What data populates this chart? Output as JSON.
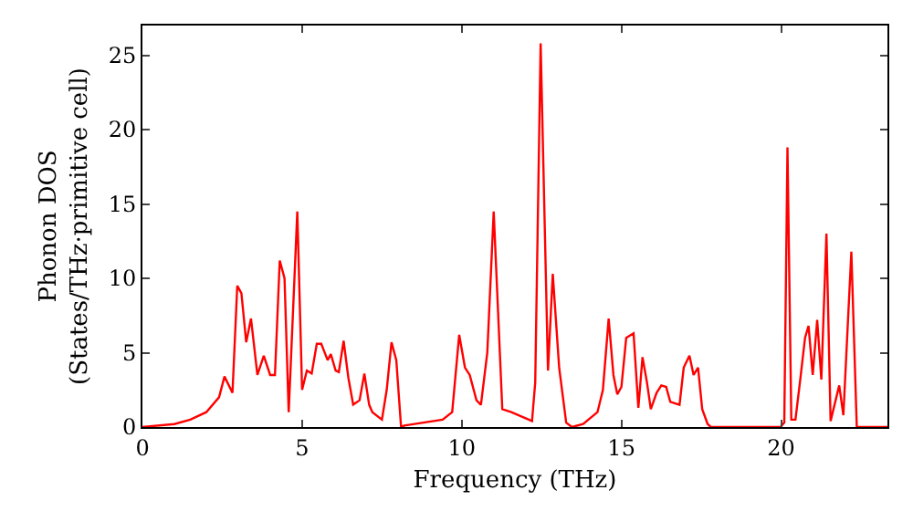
{
  "chart_data": {
    "type": "line",
    "xlabel": "Frequency (THz)",
    "ylabel": "Phonon DOS\n(States/THz·primitive cell)",
    "x": [
      0,
      1,
      1.5,
      2,
      2.4,
      2.57,
      2.82,
      2.97,
      3.1,
      3.25,
      3.4,
      3.6,
      3.8,
      4.0,
      4.15,
      4.3,
      4.45,
      4.58,
      4.85,
      5.0,
      5.15,
      5.3,
      5.46,
      5.6,
      5.8,
      5.9,
      6.05,
      6.15,
      6.3,
      6.45,
      6.6,
      6.8,
      6.95,
      7.1,
      7.2,
      7.5,
      7.65,
      7.8,
      7.95,
      8.1,
      8.2,
      9.4,
      9.7,
      9.92,
      10.1,
      10.25,
      10.46,
      10.6,
      10.8,
      11.0,
      11.27,
      11.55,
      12.1,
      12.2,
      12.3,
      12.47,
      12.7,
      12.85,
      13.05,
      13.27,
      13.45,
      13.8,
      14.25,
      14.42,
      14.6,
      14.75,
      14.87,
      15.0,
      15.15,
      15.38,
      15.53,
      15.66,
      15.8,
      15.92,
      16.1,
      16.25,
      16.4,
      16.53,
      16.82,
      16.95,
      17.13,
      17.26,
      17.4,
      17.53,
      17.7,
      17.8,
      19.98,
      20.1,
      20.2,
      20.32,
      20.45,
      20.6,
      20.75,
      20.86,
      20.99,
      21.13,
      21.26,
      21.42,
      21.55,
      21.82,
      21.95,
      22.2,
      22.37,
      23.33
    ],
    "series": [
      {
        "color": "#ff0000",
        "values": [
          0,
          0.2,
          0.5,
          1,
          2,
          3.4,
          2.3,
          9.5,
          9,
          5.7,
          7.3,
          3.5,
          4.8,
          3.5,
          3.5,
          11.2,
          10,
          1,
          14.5,
          2.5,
          3.8,
          3.6,
          5.6,
          5.6,
          4.5,
          4.9,
          3.8,
          3.7,
          5.8,
          3.3,
          1.5,
          1.8,
          3.6,
          1.5,
          1,
          0.5,
          2.5,
          5.7,
          4.5,
          0,
          0.1,
          0.5,
          1,
          6.2,
          4,
          3.5,
          1.8,
          1.5,
          5,
          14.5,
          1.2,
          1,
          0.5,
          0.4,
          3,
          25.8,
          3.8,
          10.3,
          4,
          0.3,
          0,
          0.2,
          1,
          2.5,
          7.3,
          3.5,
          2.2,
          2.7,
          6,
          6.3,
          1.3,
          4.7,
          3,
          1.2,
          2.3,
          2.8,
          2.7,
          1.7,
          1.5,
          4,
          4.8,
          3.5,
          4,
          1.2,
          0.2,
          0,
          0,
          0.3,
          18.8,
          0.5,
          0.5,
          3.2,
          6,
          6.8,
          3.5,
          7.2,
          3.2,
          13,
          0.4,
          2.8,
          0.8,
          11.8,
          0,
          0
        ]
      }
    ],
    "xlim": [
      0,
      23.33
    ],
    "ylim": [
      0,
      27
    ],
    "xticks": [
      0,
      5,
      10,
      15,
      20
    ],
    "yticks": [
      0,
      5,
      10,
      15,
      20,
      25
    ],
    "legend": false
  }
}
